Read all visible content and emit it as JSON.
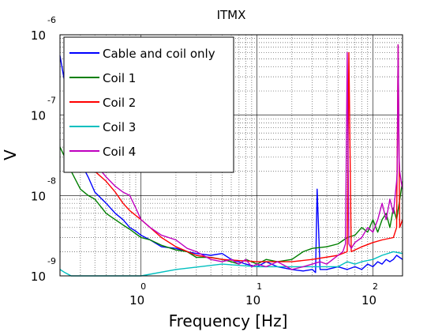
{
  "chart_data": {
    "type": "line",
    "title": "ITMX",
    "xlabel": "Frequency [Hz]",
    "ylabel": "V",
    "xscale": "log",
    "yscale": "log",
    "xlim": [
      0.2,
      180
    ],
    "ylim": [
      1e-09,
      1e-06
    ],
    "grid": true,
    "legend_position": "top-left",
    "x_ticks": [
      {
        "value": 1,
        "base": "10",
        "exp": "0"
      },
      {
        "value": 10,
        "base": "10",
        "exp": "1"
      },
      {
        "value": 100,
        "base": "10",
        "exp": "2"
      }
    ],
    "y_ticks": [
      {
        "value": 1e-09,
        "base": "10",
        "exp": "-9"
      },
      {
        "value": 1e-08,
        "base": "10",
        "exp": "-8"
      },
      {
        "value": 1e-07,
        "base": "10",
        "exp": "-7"
      },
      {
        "value": 1e-06,
        "base": "10",
        "exp": "-6"
      }
    ],
    "series": [
      {
        "name": "Cable and coil only",
        "color": "#0000ff",
        "x": [
          0.2,
          0.22,
          0.25,
          0.3,
          0.35,
          0.4,
          0.5,
          0.6,
          0.7,
          0.8,
          0.9,
          1.0,
          1.2,
          1.5,
          2,
          2.5,
          3,
          4,
          5,
          6,
          7,
          8,
          10,
          12,
          15,
          20,
          25,
          30,
          32,
          33,
          35,
          40,
          50,
          60,
          70,
          80,
          90,
          100,
          110,
          120,
          130,
          140,
          150,
          160,
          180
        ],
        "y": [
          5.5e-07,
          2.5e-07,
          8e-08,
          2.6e-08,
          1.7e-08,
          1.1e-08,
          8e-09,
          6e-09,
          5e-09,
          4e-09,
          3.6e-09,
          3.2e-09,
          2.8e-09,
          2.3e-09,
          2.2e-09,
          2e-09,
          1.9e-09,
          1.8e-09,
          1.9e-09,
          1.6e-09,
          1.5e-09,
          1.4e-09,
          1.3e-09,
          1.5e-09,
          1.3e-09,
          1.2e-09,
          1.15e-09,
          1.2e-09,
          1.1e-09,
          1.2e-08,
          1.2e-09,
          1.2e-09,
          1.3e-09,
          1.2e-09,
          1.3e-09,
          1.2e-09,
          1.4e-09,
          1.3e-09,
          1.5e-09,
          1.4e-09,
          1.6e-09,
          1.5e-09,
          1.6e-09,
          1.8e-09,
          1.6e-09
        ]
      },
      {
        "name": "Coil 1",
        "color": "#007f00",
        "x": [
          0.2,
          0.22,
          0.25,
          0.3,
          0.35,
          0.4,
          0.5,
          0.6,
          0.7,
          0.8,
          1.0,
          1.2,
          1.5,
          2,
          2.5,
          3,
          4,
          5,
          6,
          7,
          8,
          9,
          10,
          12,
          15,
          20,
          25,
          30,
          40,
          50,
          60,
          70,
          80,
          90,
          100,
          110,
          120,
          130,
          140,
          150,
          160,
          180
        ],
        "y": [
          4e-08,
          3e-08,
          2e-08,
          1.2e-08,
          1e-08,
          9e-09,
          6e-09,
          5e-09,
          4.3e-09,
          3.8e-09,
          3e-09,
          2.8e-09,
          2.4e-09,
          2.1e-09,
          2e-09,
          1.7e-09,
          1.7e-09,
          1.6e-09,
          1.5e-09,
          1.4e-09,
          1.6e-09,
          1.5e-09,
          1.4e-09,
          1.6e-09,
          1.5e-09,
          1.6e-09,
          2e-09,
          2.2e-09,
          2.3e-09,
          2.5e-09,
          3e-09,
          3.2e-09,
          4e-09,
          3.5e-09,
          5e-09,
          3.5e-09,
          5e-09,
          6e-09,
          4e-09,
          7e-09,
          5e-09,
          1.5e-08
        ]
      },
      {
        "name": "Coil 2",
        "color": "#ff0000",
        "x": [
          0.3,
          0.4,
          0.5,
          0.6,
          0.7,
          0.8,
          1.0,
          1.5,
          2,
          3,
          5,
          10,
          20,
          30,
          50,
          60,
          62,
          65,
          80,
          100,
          120,
          150,
          160,
          165,
          170,
          180
        ],
        "y": [
          3e-08,
          2e-08,
          1.5e-08,
          1.1e-08,
          8e-09,
          6.5e-09,
          5e-09,
          3e-09,
          2.3e-09,
          1.8e-09,
          1.6e-09,
          1.5e-09,
          1.5e-09,
          1.6e-09,
          1.8e-09,
          2e-09,
          6e-07,
          2e-09,
          2.3e-09,
          2.6e-09,
          2.8e-09,
          3e-09,
          4e-09,
          7.5e-07,
          4e-09,
          5e-09
        ]
      },
      {
        "name": "Coil 3",
        "color": "#00bfbf",
        "x": [
          0.2,
          0.22,
          0.25,
          0.3,
          0.4,
          0.5,
          1.0,
          2,
          5,
          10,
          20,
          30,
          40,
          50,
          60,
          70,
          80,
          100,
          120,
          150,
          180
        ],
        "y": [
          1.2e-09,
          1.1e-09,
          1e-09,
          1e-09,
          1e-09,
          1e-09,
          1e-09,
          1.2e-09,
          1.4e-09,
          1.3e-09,
          1.3e-09,
          1.3e-09,
          1.3e-09,
          1.3e-09,
          1.5e-09,
          1.4e-09,
          1.5e-09,
          1.6e-09,
          1.8e-09,
          2e-09,
          1.9e-09
        ]
      },
      {
        "name": "Coil 4",
        "color": "#bf00bf",
        "x": [
          0.3,
          0.35,
          0.4,
          0.5,
          0.6,
          0.7,
          0.8,
          0.9,
          1.0,
          1.2,
          1.5,
          2,
          2.5,
          3,
          4,
          5,
          6,
          7,
          8,
          9,
          10,
          12,
          15,
          20,
          25,
          30,
          35,
          40,
          45,
          50,
          55,
          58,
          60,
          62,
          65,
          70,
          80,
          90,
          100,
          110,
          120,
          130,
          140,
          150,
          160,
          162,
          165,
          168,
          170,
          175,
          180
        ],
        "y": [
          5e-08,
          3.5e-08,
          2.5e-08,
          1.7e-08,
          1.3e-08,
          1.1e-08,
          1e-08,
          7e-09,
          5e-09,
          4e-09,
          3.2e-09,
          2.8e-09,
          2.2e-09,
          2e-09,
          1.6e-09,
          1.5e-09,
          1.6e-09,
          1.4e-09,
          1.6e-09,
          1.3e-09,
          1.4e-09,
          1.3e-09,
          1.5e-09,
          1.2e-09,
          1.3e-09,
          1.4e-09,
          1.5e-09,
          1.4e-09,
          1.6e-09,
          1.8e-09,
          2e-09,
          2.5e-09,
          6e-07,
          2.5e-09,
          2.2e-09,
          2.6e-09,
          3e-09,
          4e-09,
          3.5e-09,
          5e-09,
          8e-09,
          5e-09,
          9e-09,
          6e-09,
          1.5e-08,
          2e-08,
          7.5e-07,
          3e-08,
          2e-08,
          1.5e-08,
          1.2e-08
        ]
      }
    ]
  }
}
